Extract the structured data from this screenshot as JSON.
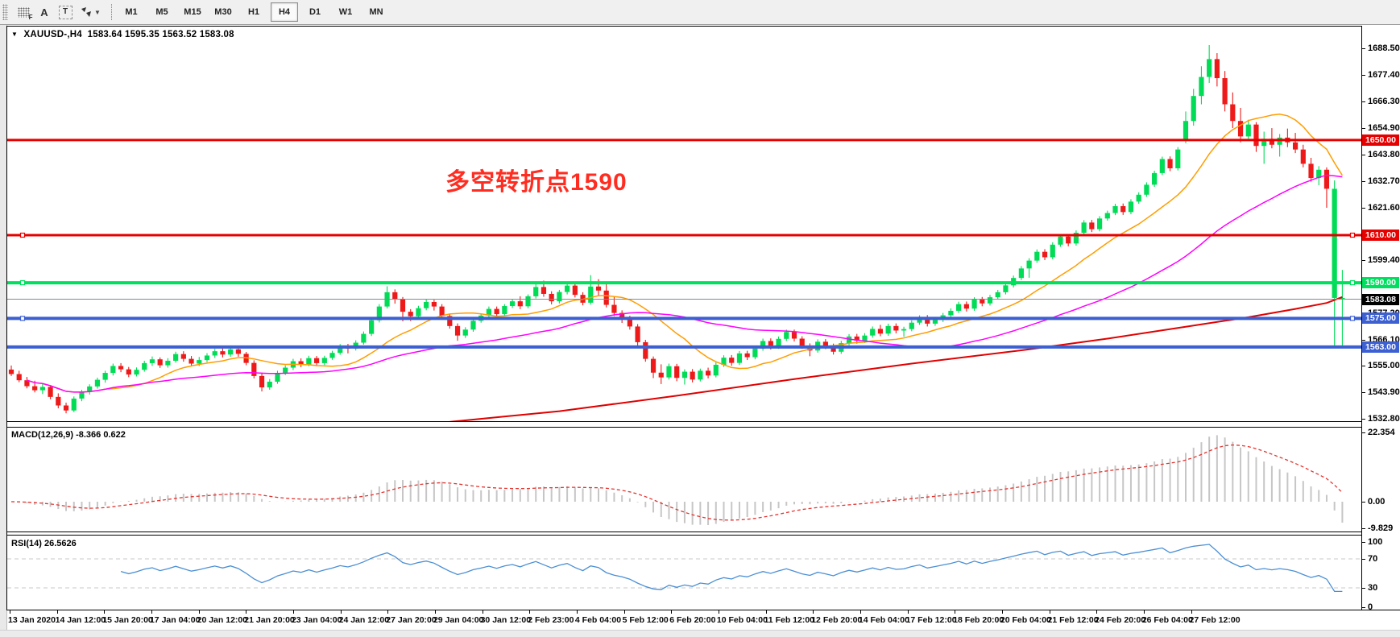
{
  "toolbar": {
    "icons": [
      {
        "name": "indicator-grid-icon",
        "glyph": "dotgrid-F"
      },
      {
        "name": "text-label-icon",
        "glyph": "A"
      },
      {
        "name": "text-tool-icon",
        "glyph": "T"
      },
      {
        "name": "arrows-tool-icon",
        "glyph": "arrows"
      }
    ],
    "timeframes": [
      "M1",
      "M5",
      "M15",
      "M30",
      "H1",
      "H4",
      "D1",
      "W1",
      "MN"
    ],
    "active_timeframe": "H4"
  },
  "title": {
    "symbol": "XAUUSD-,H4",
    "ohlc": "1583.64 1595.35 1563.52 1583.08"
  },
  "annotation": {
    "text": "多空转折点1590",
    "color": "#ff2d21"
  },
  "price_axis": {
    "ticks": [
      {
        "label": "1688.50",
        "price": 1688.5
      },
      {
        "label": "1677.40",
        "price": 1677.4
      },
      {
        "label": "1666.30",
        "price": 1666.3
      },
      {
        "label": "1654.90",
        "price": 1654.9
      },
      {
        "label": "1643.80",
        "price": 1643.8
      },
      {
        "label": "1632.70",
        "price": 1632.7
      },
      {
        "label": "1621.60",
        "price": 1621.6
      },
      {
        "label": "1599.40",
        "price": 1599.4
      },
      {
        "label": "1577.20",
        "price": 1577.2
      },
      {
        "label": "1566.10",
        "price": 1566.1
      },
      {
        "label": "1555.00",
        "price": 1555.0
      },
      {
        "label": "1543.90",
        "price": 1543.9
      },
      {
        "label": "1532.80",
        "price": 1532.8
      }
    ],
    "badges": [
      {
        "label": "1650.00",
        "price": 1650.0,
        "bg": "#e60000",
        "fg": "#ffffff"
      },
      {
        "label": "1610.00",
        "price": 1610.0,
        "bg": "#e60000",
        "fg": "#ffffff"
      },
      {
        "label": "1590.00",
        "price": 1590.0,
        "bg": "#00df5f",
        "fg": "#ffffff"
      },
      {
        "label": "1583.08",
        "price": 1583.08,
        "bg": "#000000",
        "fg": "#ffffff"
      },
      {
        "label": "1575.00",
        "price": 1575.0,
        "bg": "#3c5fd2",
        "fg": "#ffffff"
      },
      {
        "label": "1563.00",
        "price": 1563.0,
        "bg": "#3c5fd2",
        "fg": "#ffffff"
      }
    ]
  },
  "hlines": [
    {
      "price": 1650.0,
      "color": "#e60000",
      "width": 3,
      "handles": false
    },
    {
      "price": 1610.0,
      "color": "#e60000",
      "width": 3,
      "handles": true
    },
    {
      "price": 1590.0,
      "color": "#00e05e",
      "width": 4,
      "handles": true
    },
    {
      "price": 1575.0,
      "color": "#3c5fd2",
      "width": 4,
      "handles": true
    },
    {
      "price": 1563.0,
      "color": "#3c5fd2",
      "width": 4,
      "handles": false
    }
  ],
  "current_price_line": {
    "price": 1583.08,
    "color": "#7d8a8f"
  },
  "macd_panel": {
    "label": "MACD(12,26,9) -8.366 0.622",
    "scale": [
      {
        "label": "22.354",
        "value": 22.354
      },
      {
        "label": "0.00",
        "value": 0.0
      },
      {
        "label": "-9.829",
        "value": -9.829
      }
    ],
    "bar_color": "#c6c6c6",
    "signal_color": "#e3342f"
  },
  "rsi_panel": {
    "label": "RSI(14) 26.5626",
    "scale": [
      {
        "label": "100",
        "value": 100
      },
      {
        "label": "70",
        "value": 70
      },
      {
        "label": "30",
        "value": 30
      },
      {
        "label": "0",
        "value": 0
      }
    ],
    "levels": [
      70,
      30
    ],
    "line_color": "#4b8fd4"
  },
  "time_axis": {
    "labels": [
      "13 Jan 2020",
      "14 Jan 12:00",
      "15 Jan 20:00",
      "17 Jan 04:00",
      "20 Jan 12:00",
      "21 Jan 20:00",
      "23 Jan 04:00",
      "24 Jan 12:00",
      "27 Jan 20:00",
      "29 Jan 04:00",
      "30 Jan 12:00",
      "2 Feb 23:00",
      "4 Feb 04:00",
      "5 Feb 12:00",
      "6 Feb 20:00",
      "10 Feb 04:00",
      "11 Feb 12:00",
      "12 Feb 20:00",
      "14 Feb 04:00",
      "17 Feb 12:00",
      "18 Feb 20:00",
      "20 Feb 04:00",
      "21 Feb 12:00",
      "24 Feb 20:00",
      "26 Feb 04:00",
      "27 Feb 12:00"
    ]
  },
  "chart_data": {
    "type": "candlestick",
    "symbol": "XAUUSD",
    "timeframe": "H4",
    "ohlc_current": {
      "open": 1583.64,
      "high": 1595.35,
      "low": 1563.52,
      "close": 1583.08
    },
    "y_range": [
      1531.8,
      1696.2
    ],
    "up_color": "#00dc55",
    "down_color": "#ee1a1a",
    "ma_fast": {
      "period": 13,
      "color": "#ff9d00"
    },
    "ma_mid": {
      "period": 40,
      "color": "#ff00ff"
    },
    "ma_slow_color": "#e00000",
    "ma_slow_anchors": [
      [
        56,
        1531.5
      ],
      [
        70,
        1536
      ],
      [
        85,
        1542.5
      ],
      [
        100,
        1549.5
      ],
      [
        115,
        1556
      ],
      [
        130,
        1562
      ],
      [
        140,
        1566.5
      ],
      [
        150,
        1571.5
      ],
      [
        158,
        1575.5
      ],
      [
        164,
        1579
      ],
      [
        168,
        1581.5
      ],
      [
        170,
        1584
      ]
    ],
    "candles": [
      [
        1553.5,
        1555.2,
        1550.8,
        1551.6
      ],
      [
        1551.6,
        1553.0,
        1548.2,
        1549.0
      ],
      [
        1549.0,
        1550.4,
        1545.6,
        1546.5
      ],
      [
        1546.5,
        1548.8,
        1543.9,
        1544.8
      ],
      [
        1544.8,
        1547.6,
        1543.2,
        1546.2
      ],
      [
        1546.2,
        1547.0,
        1541.0,
        1542.0
      ],
      [
        1542.0,
        1543.5,
        1537.2,
        1538.4
      ],
      [
        1538.4,
        1539.6,
        1535.1,
        1536.3
      ],
      [
        1536.3,
        1542.2,
        1535.6,
        1541.3
      ],
      [
        1541.3,
        1545.0,
        1540.2,
        1544.1
      ],
      [
        1544.1,
        1547.3,
        1543.0,
        1546.4
      ],
      [
        1546.4,
        1550.1,
        1545.5,
        1549.2
      ],
      [
        1549.2,
        1553.0,
        1548.0,
        1552.1
      ],
      [
        1552.1,
        1556.0,
        1551.0,
        1555.0
      ],
      [
        1555.0,
        1556.2,
        1552.4,
        1553.6
      ],
      [
        1553.6,
        1554.6,
        1550.3,
        1551.4
      ],
      [
        1551.4,
        1554.4,
        1550.6,
        1553.4
      ],
      [
        1553.4,
        1557.2,
        1552.6,
        1556.2
      ],
      [
        1556.2,
        1559.0,
        1555.0,
        1557.8
      ],
      [
        1557.8,
        1558.6,
        1554.2,
        1555.3
      ],
      [
        1555.3,
        1558.3,
        1554.3,
        1557.2
      ],
      [
        1557.2,
        1561.0,
        1556.4,
        1560.0
      ],
      [
        1560.0,
        1561.2,
        1556.8,
        1558.0
      ],
      [
        1558.0,
        1559.2,
        1554.8,
        1556.0
      ],
      [
        1556.0,
        1558.8,
        1555.0,
        1557.5
      ],
      [
        1557.5,
        1560.4,
        1556.6,
        1559.4
      ],
      [
        1559.4,
        1562.2,
        1558.4,
        1561.2
      ],
      [
        1561.2,
        1562.4,
        1558.6,
        1559.8
      ],
      [
        1559.8,
        1562.8,
        1558.9,
        1562.0
      ],
      [
        1562.0,
        1562.9,
        1558.9,
        1560.1
      ],
      [
        1560.1,
        1560.9,
        1555.3,
        1556.3
      ],
      [
        1556.3,
        1557.4,
        1549.8,
        1550.8
      ],
      [
        1550.8,
        1551.9,
        1544.3,
        1546.0
      ],
      [
        1546.0,
        1549.5,
        1545.0,
        1548.4
      ],
      [
        1548.4,
        1553.0,
        1547.5,
        1552.0
      ],
      [
        1552.0,
        1555.3,
        1551.2,
        1554.3
      ],
      [
        1554.3,
        1558.0,
        1553.3,
        1557.0
      ],
      [
        1557.0,
        1558.2,
        1554.5,
        1555.7
      ],
      [
        1555.7,
        1559.3,
        1554.9,
        1558.3
      ],
      [
        1558.3,
        1559.2,
        1555.0,
        1556.2
      ],
      [
        1556.2,
        1559.3,
        1555.4,
        1558.4
      ],
      [
        1558.4,
        1561.4,
        1557.6,
        1560.5
      ],
      [
        1560.5,
        1564.2,
        1559.7,
        1563.3
      ],
      [
        1563.3,
        1564.3,
        1560.3,
        1562.3
      ],
      [
        1562.3,
        1565.8,
        1561.5,
        1564.8
      ],
      [
        1564.8,
        1569.5,
        1564.0,
        1568.5
      ],
      [
        1568.5,
        1575.2,
        1567.6,
        1574.2
      ],
      [
        1574.2,
        1581.0,
        1573.3,
        1580.0
      ],
      [
        1580.0,
        1588.5,
        1579.2,
        1586.0
      ],
      [
        1586.0,
        1587.2,
        1581.2,
        1583.0
      ],
      [
        1583.0,
        1584.0,
        1573.8,
        1577.8
      ],
      [
        1577.8,
        1578.9,
        1573.9,
        1575.9
      ],
      [
        1575.9,
        1580.3,
        1575.0,
        1579.3
      ],
      [
        1579.3,
        1583.0,
        1578.4,
        1581.9
      ],
      [
        1581.9,
        1582.8,
        1578.3,
        1580.0
      ],
      [
        1580.0,
        1581.0,
        1574.9,
        1576.0
      ],
      [
        1576.0,
        1577.0,
        1570.7,
        1571.8
      ],
      [
        1571.8,
        1572.9,
        1565.6,
        1567.8
      ],
      [
        1567.8,
        1571.3,
        1566.8,
        1570.3
      ],
      [
        1570.3,
        1575.0,
        1569.4,
        1574.0
      ],
      [
        1574.0,
        1577.1,
        1573.2,
        1576.2
      ],
      [
        1576.2,
        1580.0,
        1575.2,
        1579.0
      ],
      [
        1579.0,
        1580.0,
        1575.5,
        1576.8
      ],
      [
        1576.8,
        1581.0,
        1576.0,
        1580.2
      ],
      [
        1580.2,
        1583.2,
        1579.4,
        1582.2
      ],
      [
        1582.2,
        1584.3,
        1578.9,
        1580.1
      ],
      [
        1580.1,
        1585.1,
        1579.3,
        1584.3
      ],
      [
        1584.3,
        1590.6,
        1583.4,
        1588.2
      ],
      [
        1588.2,
        1590.9,
        1584.1,
        1585.3
      ],
      [
        1585.3,
        1586.4,
        1580.9,
        1582.2
      ],
      [
        1582.2,
        1587.0,
        1581.3,
        1586.1
      ],
      [
        1586.1,
        1590.2,
        1585.1,
        1588.8
      ],
      [
        1588.8,
        1589.9,
        1583.8,
        1584.9
      ],
      [
        1584.9,
        1586.0,
        1580.5,
        1581.6
      ],
      [
        1581.6,
        1593.2,
        1580.8,
        1588.4
      ],
      [
        1588.4,
        1591.5,
        1584.5,
        1586.7
      ],
      [
        1586.7,
        1589.8,
        1579.6,
        1580.7
      ],
      [
        1580.7,
        1584.0,
        1576.0,
        1577.3
      ],
      [
        1577.3,
        1578.4,
        1573.1,
        1575.0
      ],
      [
        1575.0,
        1576.1,
        1570.3,
        1571.6
      ],
      [
        1571.6,
        1572.6,
        1563.5,
        1565.0
      ],
      [
        1565.0,
        1566.0,
        1556.8,
        1558.0
      ],
      [
        1558.0,
        1559.0,
        1549.9,
        1552.2
      ],
      [
        1552.2,
        1555.7,
        1547.4,
        1550.2
      ],
      [
        1550.2,
        1556.0,
        1549.3,
        1554.9
      ],
      [
        1554.9,
        1555.9,
        1548.6,
        1550.0
      ],
      [
        1550.0,
        1553.6,
        1547.2,
        1552.6
      ],
      [
        1552.6,
        1553.7,
        1548.1,
        1549.3
      ],
      [
        1549.3,
        1553.9,
        1548.5,
        1553.0
      ],
      [
        1553.0,
        1554.3,
        1549.8,
        1551.0
      ],
      [
        1551.0,
        1556.5,
        1550.2,
        1555.5
      ],
      [
        1555.5,
        1559.5,
        1554.6,
        1558.5
      ],
      [
        1558.5,
        1559.6,
        1555.1,
        1556.3
      ],
      [
        1556.3,
        1561.3,
        1555.4,
        1560.3
      ],
      [
        1560.3,
        1561.4,
        1557.5,
        1558.7
      ],
      [
        1558.7,
        1563.3,
        1557.8,
        1562.3
      ],
      [
        1562.3,
        1566.5,
        1561.4,
        1565.5
      ],
      [
        1565.5,
        1566.6,
        1561.9,
        1563.1
      ],
      [
        1563.1,
        1567.4,
        1562.2,
        1566.4
      ],
      [
        1566.4,
        1570.3,
        1565.5,
        1569.3
      ],
      [
        1569.3,
        1570.3,
        1565.3,
        1566.5
      ],
      [
        1566.5,
        1567.5,
        1562.2,
        1563.4
      ],
      [
        1563.4,
        1564.5,
        1559.1,
        1561.5
      ],
      [
        1561.5,
        1566.2,
        1560.6,
        1565.2
      ],
      [
        1565.2,
        1566.3,
        1562.1,
        1563.3
      ],
      [
        1563.3,
        1564.4,
        1559.8,
        1561.0
      ],
      [
        1561.0,
        1565.6,
        1560.1,
        1564.6
      ],
      [
        1564.6,
        1568.4,
        1563.7,
        1567.4
      ],
      [
        1567.4,
        1568.5,
        1564.4,
        1565.6
      ],
      [
        1565.6,
        1568.8,
        1564.7,
        1567.8
      ],
      [
        1567.8,
        1571.6,
        1566.9,
        1570.6
      ],
      [
        1570.6,
        1572.3,
        1567.5,
        1568.6
      ],
      [
        1568.6,
        1572.8,
        1567.7,
        1571.8
      ],
      [
        1571.8,
        1572.9,
        1568.7,
        1569.9
      ],
      [
        1569.9,
        1571.5,
        1567.3,
        1570.5
      ],
      [
        1570.5,
        1574.2,
        1569.6,
        1573.2
      ],
      [
        1573.2,
        1576.3,
        1572.3,
        1575.3
      ],
      [
        1575.3,
        1576.4,
        1571.6,
        1572.8
      ],
      [
        1572.8,
        1575.4,
        1571.9,
        1574.4
      ],
      [
        1574.4,
        1577.3,
        1573.5,
        1576.3
      ],
      [
        1576.3,
        1579.2,
        1575.4,
        1578.2
      ],
      [
        1578.2,
        1582.0,
        1577.3,
        1581.0
      ],
      [
        1581.0,
        1582.1,
        1577.9,
        1579.1
      ],
      [
        1579.1,
        1583.9,
        1578.2,
        1582.9
      ],
      [
        1582.9,
        1584.0,
        1580.1,
        1581.3
      ],
      [
        1581.3,
        1584.9,
        1580.4,
        1583.9
      ],
      [
        1583.9,
        1587.0,
        1583.0,
        1586.0
      ],
      [
        1586.0,
        1589.9,
        1585.1,
        1588.9
      ],
      [
        1588.9,
        1593.0,
        1588.0,
        1592.0
      ],
      [
        1592.0,
        1597.0,
        1591.1,
        1596.0
      ],
      [
        1596.0,
        1600.3,
        1592.1,
        1599.3
      ],
      [
        1599.3,
        1604.0,
        1598.4,
        1603.0
      ],
      [
        1603.0,
        1604.1,
        1599.5,
        1600.7
      ],
      [
        1600.7,
        1607.0,
        1599.8,
        1606.0
      ],
      [
        1606.0,
        1610.4,
        1605.1,
        1609.4
      ],
      [
        1609.4,
        1610.5,
        1605.3,
        1606.5
      ],
      [
        1606.5,
        1612.0,
        1605.6,
        1611.0
      ],
      [
        1611.0,
        1616.3,
        1610.1,
        1615.3
      ],
      [
        1615.3,
        1616.4,
        1611.3,
        1612.5
      ],
      [
        1612.5,
        1618.0,
        1611.6,
        1617.0
      ],
      [
        1617.0,
        1620.3,
        1616.1,
        1619.3
      ],
      [
        1619.3,
        1623.2,
        1618.4,
        1622.2
      ],
      [
        1622.2,
        1623.3,
        1618.5,
        1619.7
      ],
      [
        1619.7,
        1625.1,
        1618.8,
        1624.1
      ],
      [
        1624.1,
        1628.0,
        1623.2,
        1627.0
      ],
      [
        1627.0,
        1632.2,
        1626.1,
        1631.2
      ],
      [
        1631.2,
        1637.1,
        1630.3,
        1636.1
      ],
      [
        1636.1,
        1643.0,
        1635.2,
        1642.0
      ],
      [
        1642.0,
        1643.1,
        1636.9,
        1638.1
      ],
      [
        1638.1,
        1647.0,
        1637.2,
        1646.0
      ],
      [
        1650.0,
        1662.0,
        1648.6,
        1658.0
      ],
      [
        1658.0,
        1671.5,
        1656.0,
        1668.5
      ],
      [
        1668.5,
        1681.0,
        1665.0,
        1676.5
      ],
      [
        1676.5,
        1689.9,
        1674.0,
        1684.0
      ],
      [
        1684.0,
        1686.5,
        1672.5,
        1676.0
      ],
      [
        1676.0,
        1679.0,
        1662.0,
        1665.0
      ],
      [
        1665.0,
        1670.0,
        1655.0,
        1658.0
      ],
      [
        1658.0,
        1663.5,
        1649.0,
        1651.5
      ],
      [
        1651.5,
        1658.5,
        1650.5,
        1656.5
      ],
      [
        1656.5,
        1657.5,
        1645.0,
        1647.5
      ],
      [
        1647.5,
        1653.5,
        1640.0,
        1650.5
      ],
      [
        1650.5,
        1655.0,
        1646.5,
        1648.0
      ],
      [
        1648.0,
        1652.5,
        1643.0,
        1651.0
      ],
      [
        1651.0,
        1654.8,
        1647.0,
        1649.0
      ],
      [
        1649.0,
        1653.0,
        1644.5,
        1646.0
      ],
      [
        1646.0,
        1648.0,
        1638.5,
        1640.0
      ],
      [
        1640.0,
        1642.5,
        1632.5,
        1634.0
      ],
      [
        1634.0,
        1639.0,
        1631.0,
        1637.5
      ],
      [
        1637.5,
        1638.5,
        1621.5,
        1629.5
      ],
      [
        1629.5,
        1633.0,
        1563.5,
        1583.6,
        "g"
      ],
      [
        1583.6,
        1595.4,
        1563.5,
        1583.1,
        "g"
      ]
    ]
  }
}
